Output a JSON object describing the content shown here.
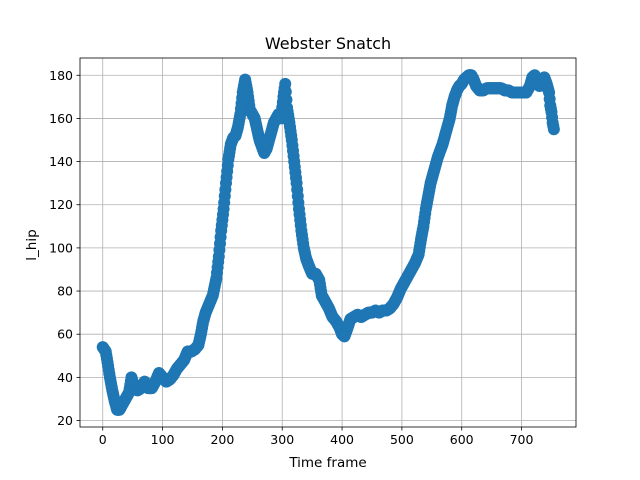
{
  "chart_data": {
    "type": "scatter",
    "title": "Webster Snatch",
    "xlabel": "Time frame",
    "ylabel": "l_hip",
    "xlim": [
      -38,
      791
    ],
    "ylim": [
      17,
      188
    ],
    "xticks": [
      0,
      100,
      200,
      300,
      400,
      500,
      600,
      700
    ],
    "yticks": [
      20,
      40,
      60,
      80,
      100,
      120,
      140,
      160,
      180
    ],
    "grid": true,
    "color": "#1f77b4",
    "keypoints": [
      [
        0,
        54
      ],
      [
        5,
        52
      ],
      [
        8,
        47
      ],
      [
        12,
        40
      ],
      [
        16,
        34
      ],
      [
        20,
        29
      ],
      [
        24,
        25
      ],
      [
        28,
        25
      ],
      [
        32,
        27
      ],
      [
        38,
        30
      ],
      [
        44,
        33
      ],
      [
        48,
        40
      ],
      [
        52,
        36
      ],
      [
        58,
        34
      ],
      [
        64,
        35
      ],
      [
        70,
        38
      ],
      [
        76,
        35
      ],
      [
        82,
        35
      ],
      [
        88,
        38
      ],
      [
        94,
        42
      ],
      [
        100,
        40
      ],
      [
        106,
        38
      ],
      [
        112,
        39
      ],
      [
        118,
        41
      ],
      [
        124,
        44
      ],
      [
        130,
        46
      ],
      [
        136,
        48
      ],
      [
        142,
        52
      ],
      [
        148,
        52
      ],
      [
        154,
        53
      ],
      [
        160,
        55
      ],
      [
        164,
        60
      ],
      [
        168,
        66
      ],
      [
        172,
        70
      ],
      [
        178,
        74
      ],
      [
        184,
        78
      ],
      [
        190,
        86
      ],
      [
        194,
        96
      ],
      [
        198,
        108
      ],
      [
        202,
        118
      ],
      [
        206,
        130
      ],
      [
        210,
        141
      ],
      [
        214,
        148
      ],
      [
        218,
        151
      ],
      [
        222,
        152
      ],
      [
        226,
        156
      ],
      [
        230,
        162
      ],
      [
        234,
        172
      ],
      [
        238,
        178
      ],
      [
        242,
        172
      ],
      [
        246,
        164
      ],
      [
        250,
        162
      ],
      [
        254,
        160
      ],
      [
        258,
        155
      ],
      [
        262,
        150
      ],
      [
        266,
        147
      ],
      [
        270,
        144
      ],
      [
        274,
        146
      ],
      [
        278,
        150
      ],
      [
        282,
        154
      ],
      [
        286,
        158
      ],
      [
        290,
        160
      ],
      [
        294,
        162
      ],
      [
        298,
        160
      ],
      [
        302,
        170
      ],
      [
        305,
        176
      ],
      [
        308,
        165
      ],
      [
        312,
        158
      ],
      [
        316,
        150
      ],
      [
        320,
        140
      ],
      [
        324,
        130
      ],
      [
        328,
        118
      ],
      [
        332,
        108
      ],
      [
        336,
        100
      ],
      [
        340,
        95
      ],
      [
        344,
        92
      ],
      [
        350,
        88
      ],
      [
        356,
        88
      ],
      [
        362,
        85
      ],
      [
        366,
        78
      ],
      [
        370,
        76
      ],
      [
        374,
        74
      ],
      [
        378,
        72
      ],
      [
        384,
        68
      ],
      [
        390,
        66
      ],
      [
        396,
        63
      ],
      [
        400,
        60
      ],
      [
        404,
        59
      ],
      [
        408,
        62
      ],
      [
        414,
        67
      ],
      [
        420,
        68
      ],
      [
        426,
        69
      ],
      [
        432,
        68
      ],
      [
        438,
        69
      ],
      [
        444,
        70
      ],
      [
        450,
        70
      ],
      [
        456,
        71
      ],
      [
        462,
        70
      ],
      [
        468,
        71
      ],
      [
        474,
        71
      ],
      [
        480,
        72
      ],
      [
        486,
        74
      ],
      [
        492,
        77
      ],
      [
        498,
        81
      ],
      [
        504,
        84
      ],
      [
        510,
        87
      ],
      [
        516,
        90
      ],
      [
        522,
        93
      ],
      [
        528,
        97
      ],
      [
        532,
        104
      ],
      [
        536,
        110
      ],
      [
        540,
        118
      ],
      [
        544,
        124
      ],
      [
        548,
        130
      ],
      [
        552,
        134
      ],
      [
        556,
        138
      ],
      [
        560,
        142
      ],
      [
        564,
        145
      ],
      [
        568,
        148
      ],
      [
        572,
        152
      ],
      [
        576,
        156
      ],
      [
        580,
        160
      ],
      [
        584,
        166
      ],
      [
        588,
        170
      ],
      [
        592,
        173
      ],
      [
        596,
        175
      ],
      [
        600,
        176
      ],
      [
        604,
        178
      ],
      [
        608,
        179
      ],
      [
        612,
        180
      ],
      [
        616,
        180
      ],
      [
        620,
        178
      ],
      [
        624,
        175
      ],
      [
        630,
        173
      ],
      [
        636,
        173
      ],
      [
        642,
        174
      ],
      [
        648,
        174
      ],
      [
        654,
        174
      ],
      [
        660,
        174
      ],
      [
        666,
        174
      ],
      [
        672,
        173
      ],
      [
        678,
        173
      ],
      [
        684,
        172
      ],
      [
        690,
        172
      ],
      [
        696,
        172
      ],
      [
        702,
        172
      ],
      [
        708,
        172
      ],
      [
        714,
        175
      ],
      [
        718,
        179
      ],
      [
        722,
        180
      ],
      [
        726,
        176
      ],
      [
        730,
        175
      ],
      [
        734,
        177
      ],
      [
        738,
        179
      ],
      [
        742,
        176
      ],
      [
        746,
        172
      ],
      [
        748,
        166
      ],
      [
        750,
        163
      ],
      [
        752,
        158
      ],
      [
        754,
        155
      ]
    ]
  }
}
